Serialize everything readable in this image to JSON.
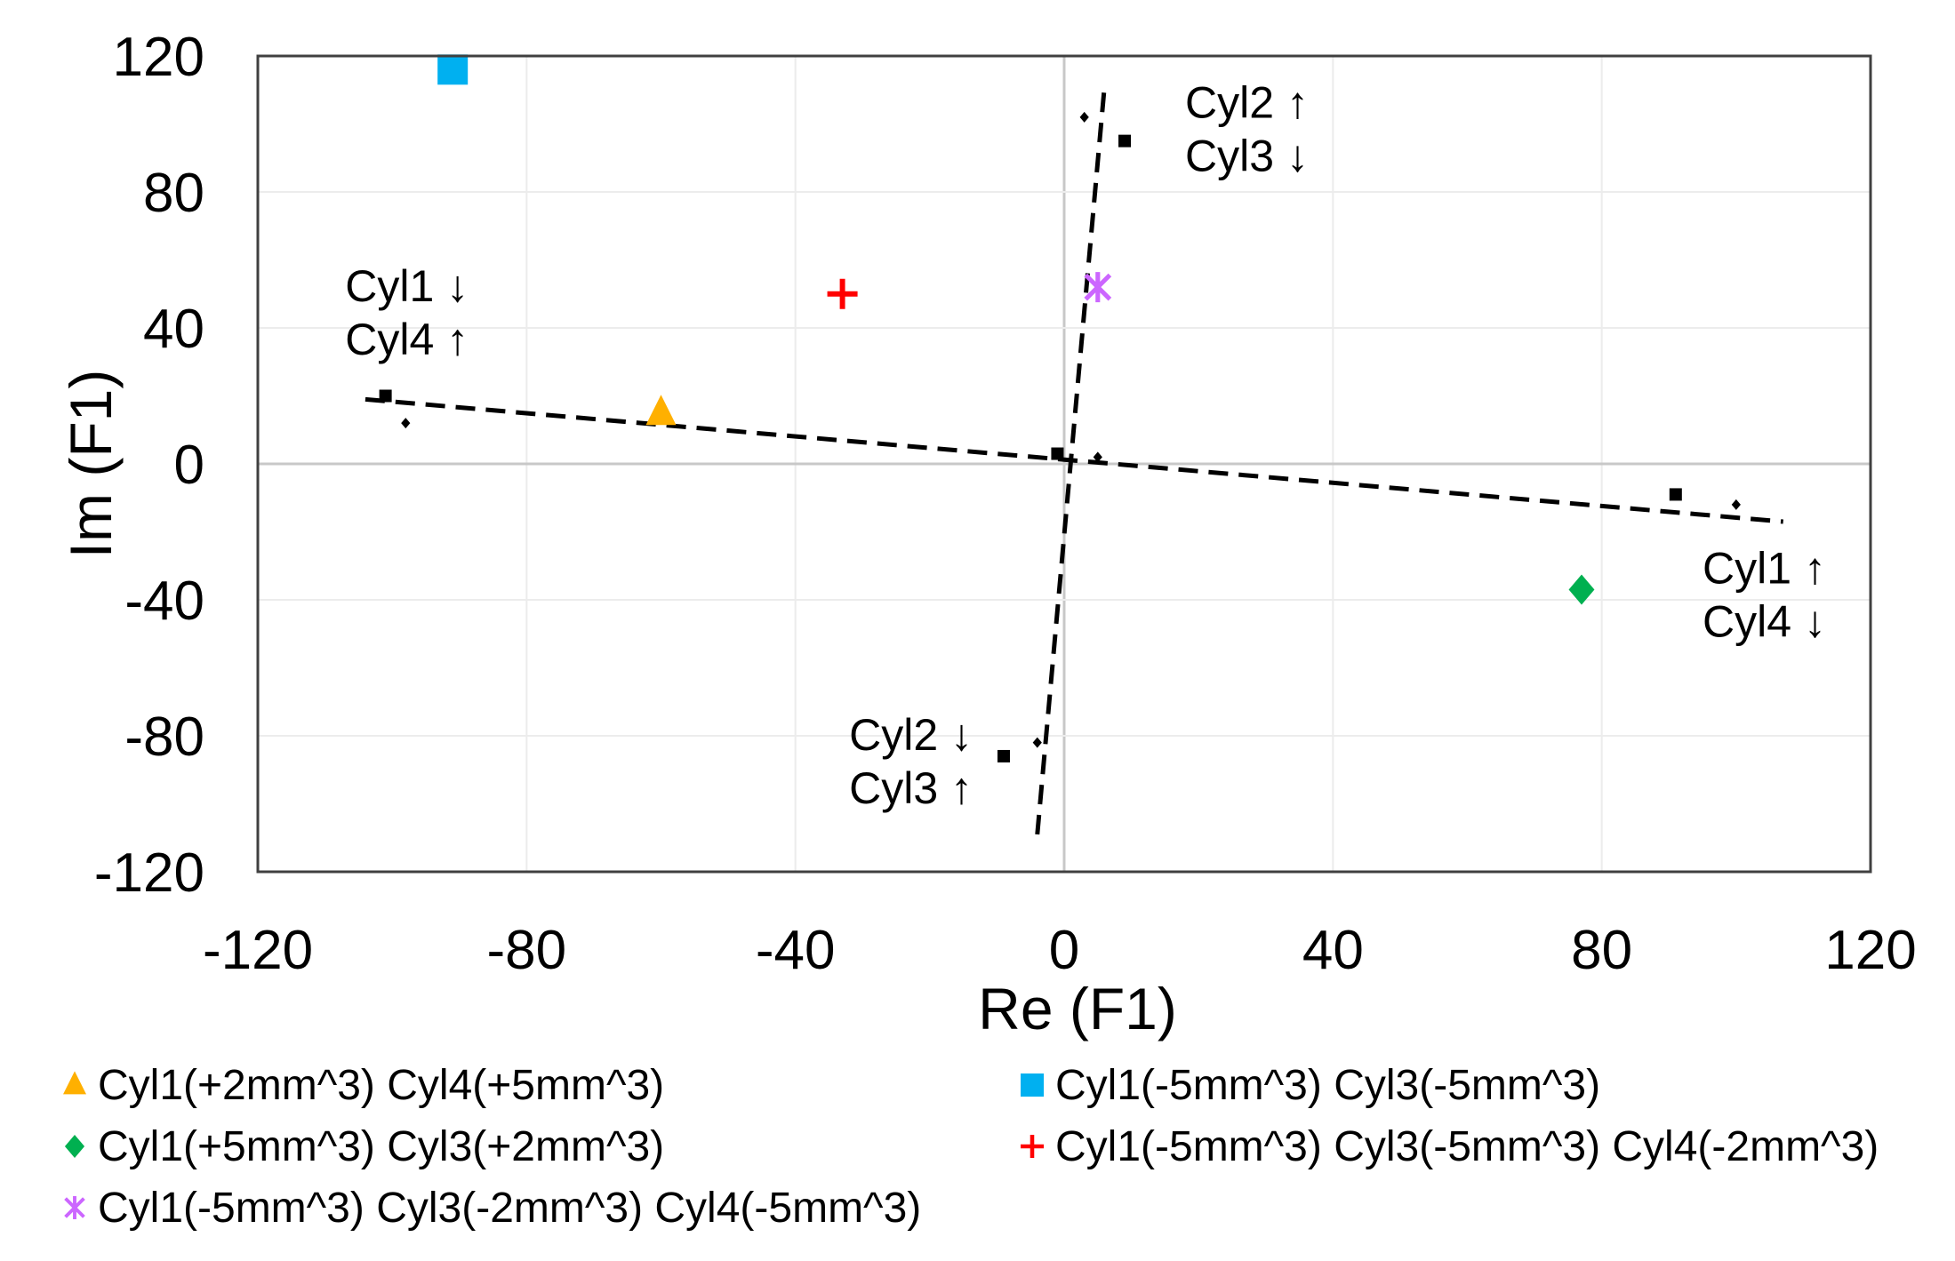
{
  "chart_data": {
    "type": "scatter",
    "title": "",
    "xlabel": "Re (F1)",
    "ylabel": "Im (F1)",
    "xlim": [
      -120,
      120
    ],
    "ylim": [
      -120,
      120
    ],
    "xticks": [
      "-120",
      "-80",
      "-40",
      "0",
      "40",
      "80",
      "120"
    ],
    "yticks": [
      "120",
      "80",
      "40",
      "0",
      "-40",
      "-80",
      "-120"
    ],
    "xtick_values": [
      -120,
      -80,
      -40,
      0,
      40,
      80,
      120
    ],
    "ytick_values": [
      120,
      80,
      40,
      0,
      -40,
      -80,
      -120
    ],
    "grid": true,
    "legend_position": "bottom",
    "series": [
      {
        "name": "Cyl1(+2mm^3) Cyl4(+5mm^3)",
        "marker": "triangle",
        "color": "#FFB000",
        "points": [
          [
            -60,
            15
          ]
        ]
      },
      {
        "name": "Cyl1(-5mm^3) Cyl3(-5mm^3)",
        "marker": "square",
        "color": "#00B0F0",
        "points": [
          [
            -91,
            116
          ]
        ]
      },
      {
        "name": "Cyl1(+5mm^3) Cyl3(+2mm^3)",
        "marker": "diamond",
        "color": "#00B050",
        "points": [
          [
            77,
            -37
          ]
        ]
      },
      {
        "name": "Cyl1(-5mm^3) Cyl3(-5mm^3) Cyl4(-2mm^3)",
        "marker": "plus",
        "color": "#FF0000",
        "points": [
          [
            -33,
            50
          ]
        ]
      },
      {
        "name": "Cyl1(-5mm^3) Cyl3(-2mm^3) Cyl4(-5mm^3)",
        "marker": "star",
        "color": "#CC66FF",
        "points": [
          [
            5,
            52
          ]
        ]
      }
    ],
    "reference_points": {
      "squares": [
        [
          -101,
          20
        ],
        [
          -1,
          3
        ],
        [
          91,
          -9
        ],
        [
          9,
          95
        ],
        [
          -9,
          -86
        ]
      ],
      "diamonds": [
        [
          -98,
          12
        ],
        [
          5,
          2
        ],
        [
          100,
          -12
        ],
        [
          3,
          102
        ],
        [
          -4,
          -82
        ]
      ]
    },
    "trendlines": [
      {
        "name": "cyl1-cyl4-trend",
        "from": [
          -104,
          19
        ],
        "to": [
          107,
          -17
        ]
      },
      {
        "name": "cyl2-cyl3-trend",
        "from": [
          -4,
          -109
        ],
        "to": [
          6,
          111
        ]
      }
    ],
    "annotations": [
      {
        "lines": [
          "Cyl2 ↑",
          "Cyl3 ↓"
        ],
        "at": [
          18,
          106
        ]
      },
      {
        "lines": [
          "Cyl1 ↓",
          "Cyl4 ↑"
        ],
        "at": [
          -107,
          52
        ]
      },
      {
        "lines": [
          "Cyl1 ↑",
          "Cyl4 ↓"
        ],
        "at": [
          95,
          -31
        ]
      },
      {
        "lines": [
          "Cyl2 ↓",
          "Cyl3 ↑"
        ],
        "at": [
          -32,
          -80
        ]
      }
    ]
  }
}
